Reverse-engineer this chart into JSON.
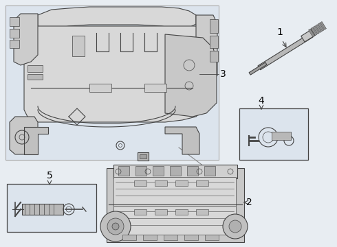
{
  "bg_color": "#e8edf2",
  "inner_bg": "#dce4ed",
  "line_color": "#444444",
  "white": "#ffffff",
  "light_gray": "#e0e0e0",
  "mid_gray": "#c0c0c0",
  "dark_gray": "#888888",
  "fig_w": 4.9,
  "fig_h": 3.6,
  "dpi": 100,
  "label_1": "1",
  "label_2": "2",
  "label_3": "3",
  "label_4": "4",
  "label_5": "5"
}
